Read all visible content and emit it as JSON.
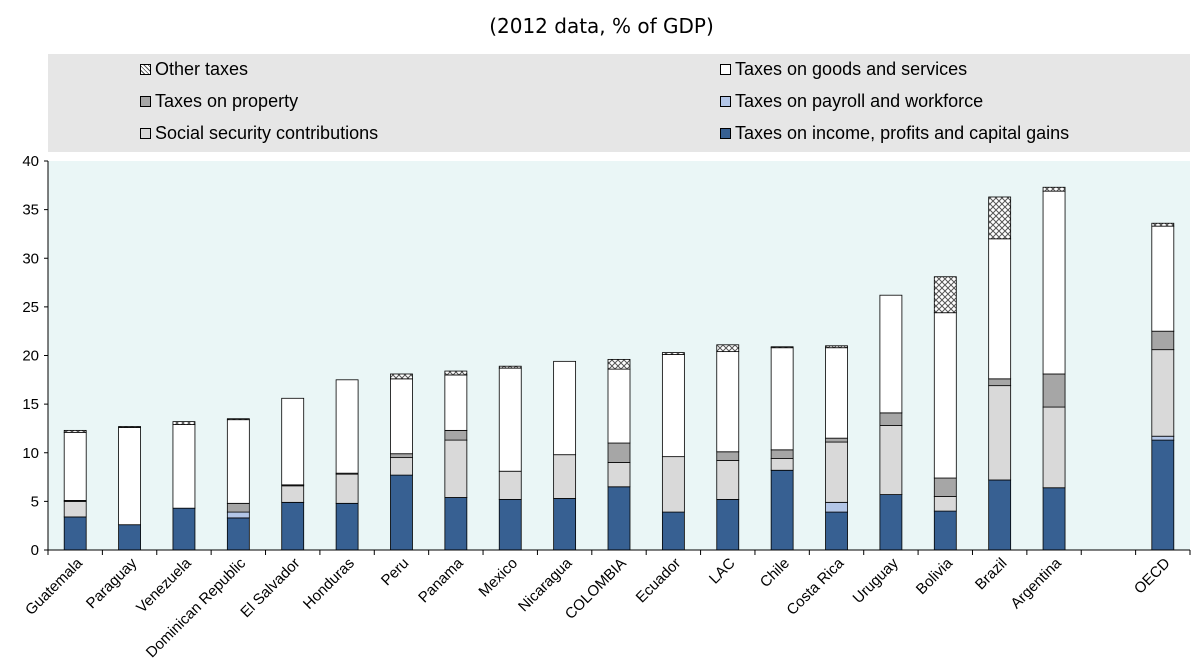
{
  "subtitle": "(2012 data, % of GDP)",
  "chart_data": {
    "type": "bar",
    "stacked": true,
    "title": "",
    "subtitle": "(2012 data, % of GDP)",
    "xlabel": "",
    "ylabel": "",
    "ylim": [
      0,
      40
    ],
    "yticks": [
      0,
      5,
      10,
      15,
      20,
      25,
      30,
      35,
      40
    ],
    "grid": false,
    "legend_position": "top",
    "categories": [
      "Guatemala",
      "Paraguay",
      "Venezuela",
      "Dominican Republic",
      "El Salvador",
      "Honduras",
      "Peru",
      "Panama",
      "Mexico",
      "Nicaragua",
      "COLOMBIA",
      "Ecuador",
      "LAC",
      "Chile",
      "Costa Rica",
      "Uruguay",
      "Bolivia",
      "Brazil",
      "Argentina",
      "OECD"
    ],
    "series": [
      {
        "name": "Taxes on income, profits and capital gains",
        "color": "#376092",
        "values": [
          3.4,
          2.6,
          4.3,
          3.3,
          4.9,
          4.8,
          7.7,
          5.4,
          5.2,
          5.3,
          6.5,
          3.9,
          5.2,
          8.2,
          3.9,
          5.7,
          4.0,
          7.2,
          6.4,
          11.3
        ]
      },
      {
        "name": "Taxes on payroll and workforce",
        "color": "#b3c6e7",
        "values": [
          0.0,
          0.0,
          0.0,
          0.6,
          0.0,
          0.0,
          0.0,
          0.0,
          0.0,
          0.0,
          0.0,
          0.0,
          0.0,
          0.0,
          1.0,
          0.0,
          0.0,
          0.0,
          0.0,
          0.4
        ]
      },
      {
        "name": "Social security contributions",
        "color": "#d9d9d9",
        "values": [
          1.6,
          0.0,
          0.0,
          0.0,
          1.7,
          3.0,
          1.8,
          5.9,
          2.9,
          4.5,
          2.5,
          5.7,
          4.0,
          1.2,
          6.2,
          7.1,
          1.5,
          9.7,
          8.3,
          8.9
        ]
      },
      {
        "name": "Taxes on property",
        "color": "#a6a6a6",
        "values": [
          0.1,
          0.0,
          0.0,
          0.9,
          0.1,
          0.1,
          0.4,
          1.0,
          0.0,
          0.0,
          2.0,
          0.0,
          0.9,
          0.9,
          0.4,
          1.3,
          1.9,
          0.7,
          3.4,
          1.9
        ]
      },
      {
        "name": "Taxes on goods and services",
        "color": "#ffffff",
        "values": [
          7.0,
          10.0,
          8.6,
          8.6,
          8.9,
          9.6,
          7.7,
          5.7,
          10.6,
          9.6,
          7.6,
          10.5,
          10.3,
          10.5,
          9.3,
          12.1,
          17.0,
          14.4,
          18.8,
          10.8
        ]
      },
      {
        "name": "Other taxes",
        "color": "#ffffff",
        "pattern": "crosshatch",
        "values": [
          0.2,
          0.1,
          0.3,
          0.1,
          0.0,
          0.0,
          0.5,
          0.4,
          0.2,
          0.0,
          1.0,
          0.2,
          0.7,
          0.1,
          0.2,
          0.0,
          3.7,
          4.3,
          0.4,
          0.3
        ]
      }
    ]
  }
}
